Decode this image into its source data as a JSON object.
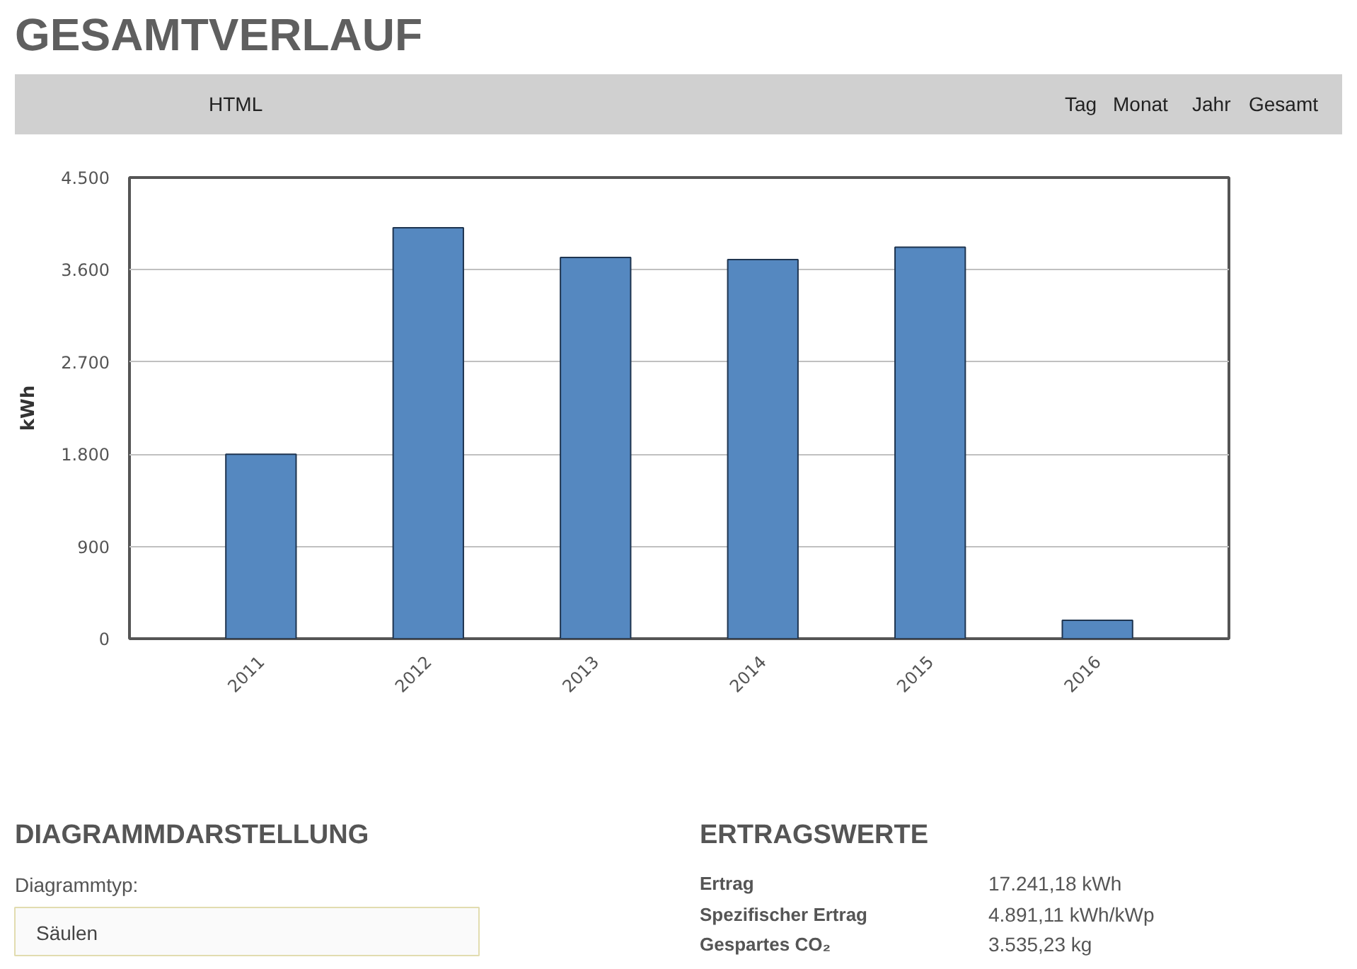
{
  "chart_data": {
    "type": "bar",
    "title": "GESAMTVERLAUF",
    "ylabel": "kWh",
    "categories": [
      "2011",
      "2012",
      "2013",
      "2014",
      "2015",
      "2016"
    ],
    "values": [
      1800,
      4010,
      3720,
      3700,
      3820,
      180
    ],
    "color": "#5588c0",
    "ylim": [
      0,
      4500
    ],
    "yticks": [
      0,
      900,
      {
        "value": 1800,
        "label": "1.800"
      },
      {
        "value": 2700,
        "label": "2.700"
      },
      {
        "value": 3600,
        "label": "3.600"
      },
      {
        "value": 4500,
        "label": "4.500"
      }
    ],
    "grid": "y",
    "annotations": [
      "HTML",
      "Tag",
      "Monat",
      "Jahr",
      "Gesamt",
      "DIAGRAMMDARSTELLUNG",
      "Diagrammtyp:",
      "Säulen",
      "ERTRAGSWERTE",
      "Ertrag",
      "17.241,18 kWh",
      "Spezifischer Ertrag",
      "4.891,11 kWh/kWp",
      "Gespartes CO₂",
      "3.535,23 kg"
    ]
  }
}
